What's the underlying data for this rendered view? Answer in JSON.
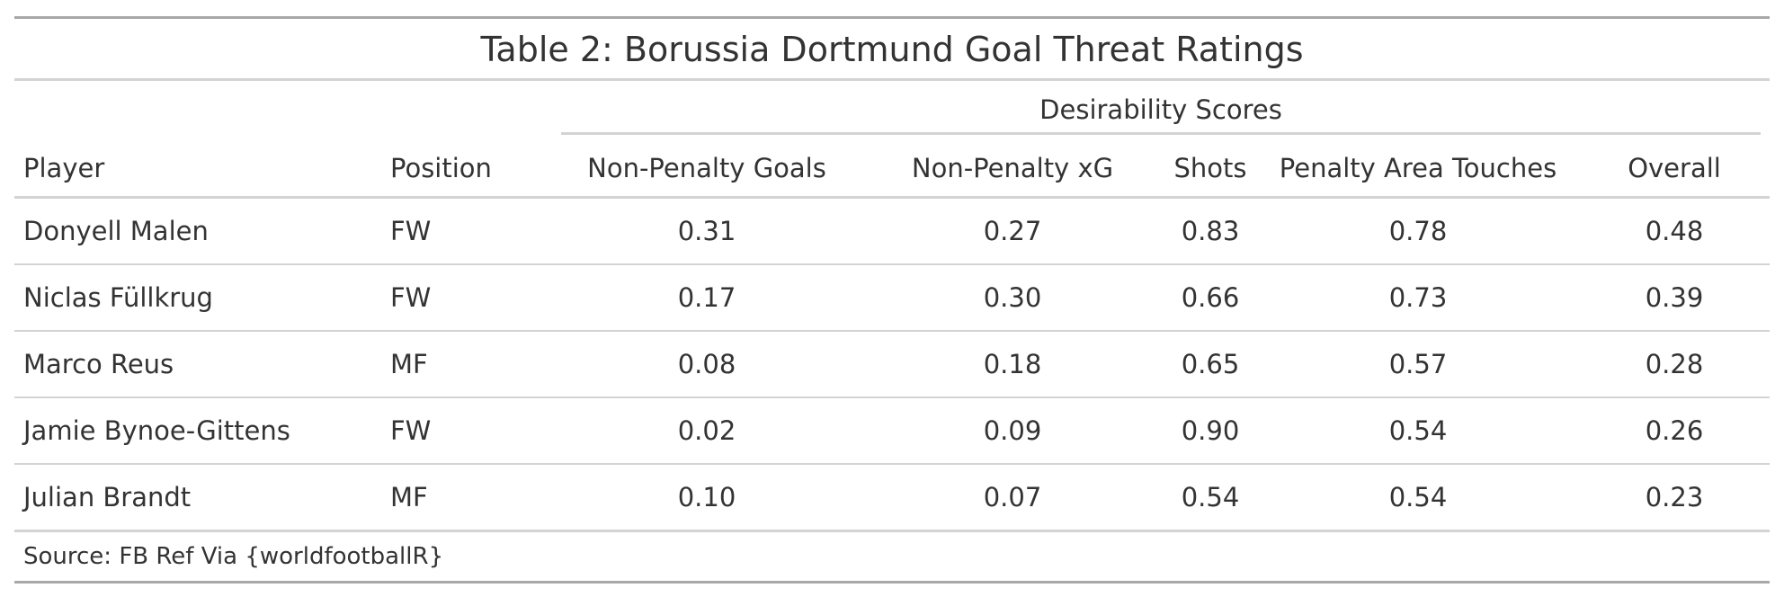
{
  "chart_data": {
    "type": "table",
    "title": "Table 2: Borussia Dortmund Goal Threat Ratings",
    "spanner": "Desirability Scores",
    "columns": [
      "Player",
      "Position",
      "Non-Penalty Goals",
      "Non-Penalty xG",
      "Shots",
      "Penalty Area Touches",
      "Overall"
    ],
    "rows": [
      [
        "Donyell Malen",
        "FW",
        "0.31",
        "0.27",
        "0.83",
        "0.78",
        "0.48"
      ],
      [
        "Niclas Füllkrug",
        "FW",
        "0.17",
        "0.30",
        "0.66",
        "0.73",
        "0.39"
      ],
      [
        "Marco Reus",
        "MF",
        "0.08",
        "0.18",
        "0.65",
        "0.57",
        "0.28"
      ],
      [
        "Jamie Bynoe-Gittens",
        "FW",
        "0.02",
        "0.09",
        "0.90",
        "0.54",
        "0.26"
      ],
      [
        "Julian Brandt",
        "MF",
        "0.10",
        "0.07",
        "0.54",
        "0.54",
        "0.23"
      ]
    ],
    "source_note": "Source: FB Ref Via {worldfootballR}"
  }
}
